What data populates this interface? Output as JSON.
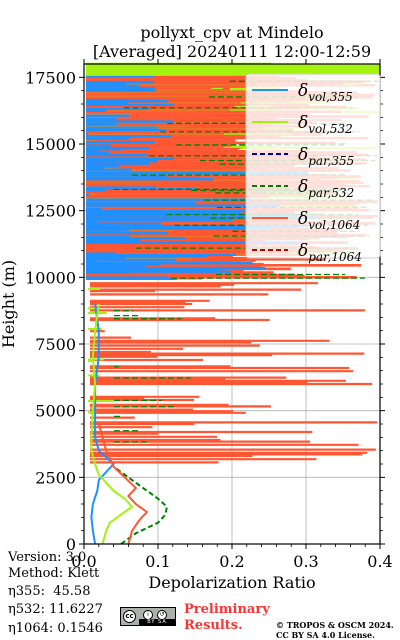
{
  "chart_data": {
    "type": "line",
    "title_line1": "pollyxt_cpv at Mindelo",
    "title_line2": "[Averaged] 20240111 12:00-12:59",
    "xlabel": "Depolarization Ratio",
    "ylabel": "Height (m)",
    "xlim": [
      0.0,
      0.4
    ],
    "ylim": [
      0,
      18000
    ],
    "xticks": [
      "0.0",
      "0.1",
      "0.2",
      "0.3",
      "0.4"
    ],
    "yticks": [
      "0",
      "2500",
      "5000",
      "7500",
      "10000",
      "12500",
      "15000",
      "17500"
    ],
    "grid": true,
    "legend_placement": "top-right",
    "series": [
      {
        "id": "vol355",
        "name": "δvol,355",
        "sym": "δ",
        "sub": "vol,355",
        "color": "#1e90ff",
        "dash": "solid",
        "points": [
          [
            0.015,
            0
          ],
          [
            0.012,
            500
          ],
          [
            0.01,
            1000
          ],
          [
            0.012,
            1500
          ],
          [
            0.018,
            2000
          ],
          [
            0.02,
            2400
          ],
          [
            0.03,
            2700
          ],
          [
            0.04,
            3000
          ],
          [
            0.02,
            3500
          ],
          [
            0.015,
            4000
          ],
          [
            0.015,
            5000
          ],
          [
            0.015,
            6000
          ],
          [
            0.02,
            7000
          ],
          [
            0.02,
            8000
          ],
          [
            0.015,
            9000
          ]
        ]
      },
      {
        "id": "vol532",
        "name": "δvol,532",
        "sym": "δ",
        "sub": "vol,532",
        "color": "#a4f20f",
        "dash": "solid",
        "points": [
          [
            0.025,
            0
          ],
          [
            0.03,
            500
          ],
          [
            0.035,
            800
          ],
          [
            0.05,
            1100
          ],
          [
            0.065,
            1400
          ],
          [
            0.055,
            1700
          ],
          [
            0.04,
            2000
          ],
          [
            0.03,
            2300
          ],
          [
            0.02,
            2600
          ],
          [
            0.015,
            3000
          ],
          [
            0.01,
            3500
          ],
          [
            0.01,
            4000
          ],
          [
            0.012,
            5000
          ],
          [
            0.015,
            6000
          ],
          [
            0.012,
            7000
          ],
          [
            0.015,
            8000
          ],
          [
            0.02,
            9000
          ]
        ]
      },
      {
        "id": "par355",
        "name": "δpar,355",
        "sym": "δ",
        "sub": "par,355",
        "color": "#0000a0",
        "dash": "dashed",
        "points": []
      },
      {
        "id": "par532",
        "name": "δpar,532",
        "sym": "δ",
        "sub": "par,532",
        "color": "#008000",
        "dash": "dashed",
        "points": [
          [
            0.05,
            0
          ],
          [
            0.07,
            400
          ],
          [
            0.1,
            800
          ],
          [
            0.11,
            1100
          ],
          [
            0.112,
            1400
          ],
          [
            0.1,
            1700
          ],
          [
            0.085,
            2000
          ],
          [
            0.07,
            2300
          ],
          [
            0.055,
            2600
          ],
          [
            0.04,
            2900
          ]
        ]
      },
      {
        "id": "vol1064",
        "name": "δvol,1064",
        "sym": "δ",
        "sub": "vol,1064",
        "color": "#ff5733",
        "dash": "solid",
        "points": [
          [
            0.06,
            0
          ],
          [
            0.065,
            500
          ],
          [
            0.075,
            900
          ],
          [
            0.085,
            1200
          ],
          [
            0.07,
            1500
          ],
          [
            0.06,
            1800
          ],
          [
            0.07,
            2100
          ],
          [
            0.055,
            2500
          ],
          [
            0.04,
            2900
          ],
          [
            0.03,
            3500
          ],
          [
            0.02,
            4500
          ]
        ]
      },
      {
        "id": "par1064",
        "name": "δpar,1064",
        "sym": "δ",
        "sub": "par,1064",
        "color": "#c00000",
        "dash": "dashed",
        "points": []
      }
    ]
  },
  "footer": {
    "version": "Version: 3.0",
    "method": "Method: Klett",
    "eta355": "η355:  45.58",
    "eta532": "η532: 11.6227",
    "eta1064": "η1064: 0.1546",
    "preliminary_line1": "Preliminary",
    "preliminary_line2": "Results.",
    "copyright_line1": "© TROPOS & OSCM 2024.",
    "copyright_line2": "CC BY SA 4.0 License.",
    "cc_badge_text": "BY SA"
  }
}
